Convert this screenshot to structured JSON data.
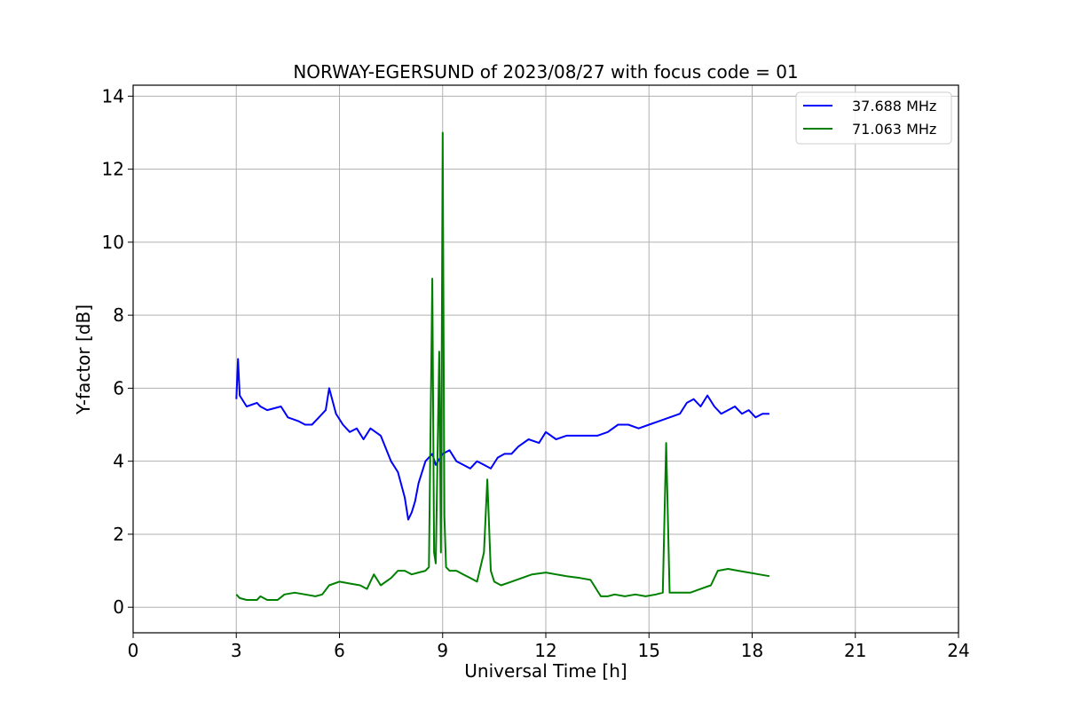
{
  "chart_data": {
    "type": "line",
    "title": "NORWAY-EGERSUND of 2023/08/27 with focus code = 01",
    "xlabel": "Universal Time [h]",
    "ylabel": "Y-factor [dB]",
    "xlim": [
      0,
      24
    ],
    "ylim": [
      -0.7,
      14.3
    ],
    "xticks": [
      0,
      3,
      6,
      9,
      12,
      15,
      18,
      21,
      24
    ],
    "yticks": [
      0,
      2,
      4,
      6,
      8,
      10,
      12,
      14
    ],
    "grid": true,
    "legend_position": "top-right",
    "series": [
      {
        "name": "37.688 MHz",
        "color": "#0000ff",
        "x": [
          3.0,
          3.05,
          3.1,
          3.3,
          3.6,
          3.7,
          3.9,
          4.3,
          4.5,
          4.8,
          5.0,
          5.2,
          5.4,
          5.6,
          5.7,
          5.9,
          6.1,
          6.3,
          6.5,
          6.7,
          6.9,
          7.2,
          7.5,
          7.7,
          7.9,
          8.0,
          8.1,
          8.2,
          8.3,
          8.5,
          8.7,
          8.8,
          9.0,
          9.2,
          9.4,
          9.6,
          9.8,
          10.0,
          10.2,
          10.4,
          10.6,
          10.8,
          11.0,
          11.2,
          11.5,
          11.8,
          12.0,
          12.3,
          12.6,
          12.9,
          13.2,
          13.5,
          13.8,
          14.1,
          14.4,
          14.7,
          15.0,
          15.3,
          15.6,
          15.9,
          16.1,
          16.3,
          16.5,
          16.7,
          16.9,
          17.1,
          17.3,
          17.5,
          17.7,
          17.9,
          18.1,
          18.3,
          18.5
        ],
        "y": [
          5.7,
          6.8,
          5.8,
          5.5,
          5.6,
          5.5,
          5.4,
          5.5,
          5.2,
          5.1,
          5.0,
          5.0,
          5.2,
          5.4,
          6.0,
          5.3,
          5.0,
          4.8,
          4.9,
          4.6,
          4.9,
          4.7,
          4.0,
          3.7,
          3.0,
          2.4,
          2.6,
          2.9,
          3.4,
          4.0,
          4.2,
          3.9,
          4.2,
          4.3,
          4.0,
          3.9,
          3.8,
          4.0,
          3.9,
          3.8,
          4.1,
          4.2,
          4.2,
          4.4,
          4.6,
          4.5,
          4.8,
          4.6,
          4.7,
          4.7,
          4.7,
          4.7,
          4.8,
          5.0,
          5.0,
          4.9,
          5.0,
          5.1,
          5.2,
          5.3,
          5.6,
          5.7,
          5.5,
          5.8,
          5.5,
          5.3,
          5.4,
          5.5,
          5.3,
          5.4,
          5.2,
          5.3,
          5.3
        ]
      },
      {
        "name": "71.063 MHz",
        "color": "#008000",
        "x": [
          3.0,
          3.1,
          3.3,
          3.6,
          3.7,
          3.9,
          4.2,
          4.4,
          4.7,
          5.0,
          5.3,
          5.5,
          5.7,
          6.0,
          6.3,
          6.6,
          6.8,
          7.0,
          7.2,
          7.5,
          7.7,
          7.9,
          8.1,
          8.3,
          8.5,
          8.6,
          8.7,
          8.75,
          8.8,
          8.9,
          8.95,
          9.0,
          9.05,
          9.1,
          9.2,
          9.4,
          9.6,
          9.8,
          10.0,
          10.2,
          10.3,
          10.4,
          10.5,
          10.7,
          11.0,
          11.3,
          11.6,
          12.0,
          12.3,
          12.6,
          13.0,
          13.3,
          13.6,
          13.8,
          14.0,
          14.3,
          14.6,
          14.9,
          15.2,
          15.4,
          15.5,
          15.6,
          15.9,
          16.2,
          16.5,
          16.8,
          17.0,
          17.3,
          17.6,
          17.9,
          18.2,
          18.5
        ],
        "y": [
          0.35,
          0.25,
          0.2,
          0.2,
          0.3,
          0.2,
          0.2,
          0.35,
          0.4,
          0.35,
          0.3,
          0.35,
          0.6,
          0.7,
          0.65,
          0.6,
          0.5,
          0.9,
          0.6,
          0.8,
          1.0,
          1.0,
          0.9,
          0.95,
          1.0,
          1.1,
          9.0,
          1.5,
          1.2,
          7.0,
          1.5,
          13.0,
          2.5,
          1.1,
          1.0,
          1.0,
          0.9,
          0.8,
          0.7,
          1.5,
          3.5,
          1.0,
          0.7,
          0.6,
          0.7,
          0.8,
          0.9,
          0.95,
          0.9,
          0.85,
          0.8,
          0.75,
          0.3,
          0.3,
          0.35,
          0.3,
          0.35,
          0.3,
          0.35,
          0.4,
          4.5,
          0.4,
          0.4,
          0.4,
          0.5,
          0.6,
          1.0,
          1.05,
          1.0,
          0.95,
          0.9,
          0.85
        ]
      }
    ]
  }
}
